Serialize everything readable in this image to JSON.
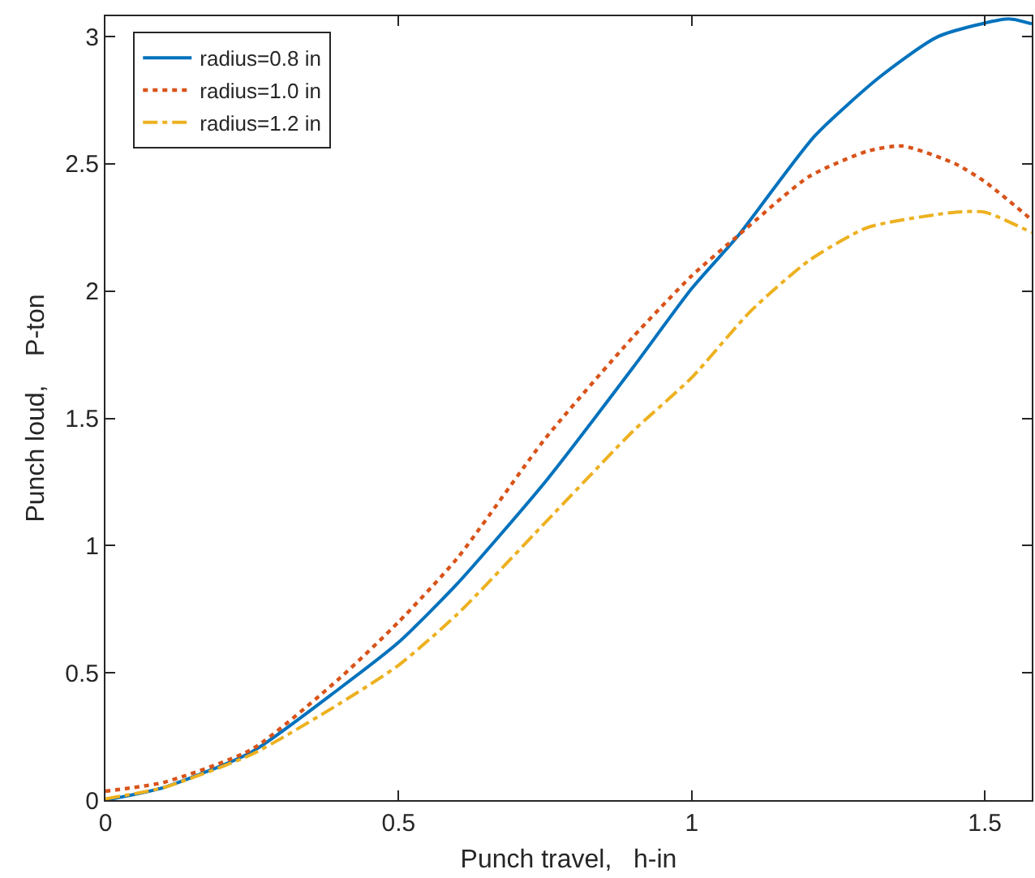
{
  "chart_data": {
    "type": "line",
    "xlabel": "Punch travel,   h-in",
    "ylabel": "Punch loud,    P-ton",
    "xlim": [
      0,
      1.58
    ],
    "ylim": [
      0,
      3.08
    ],
    "xticks": [
      0,
      0.5,
      1,
      1.5
    ],
    "yticks": [
      0,
      0.5,
      1,
      1.5,
      2,
      2.5,
      3
    ],
    "grid": false,
    "legend": "top left",
    "marker": "none",
    "series": [
      {
        "name": "radius=0.8 in",
        "color": "#0072bd",
        "line_style": "solid",
        "x": [
          0,
          0.1,
          0.25,
          0.4,
          0.5,
          0.6,
          0.75,
          0.9,
          1.0,
          1.08,
          1.21,
          1.32,
          1.42,
          1.54,
          1.58
        ],
        "values": [
          0,
          0.05,
          0.19,
          0.44,
          0.62,
          0.85,
          1.25,
          1.7,
          2.01,
          2.22,
          2.61,
          2.84,
          3.0,
          3.07,
          3.05
        ]
      },
      {
        "name": "radius=1.0 in",
        "color": "#d95319",
        "line_style": "dotted",
        "x": [
          0,
          0.1,
          0.25,
          0.4,
          0.5,
          0.6,
          0.75,
          0.9,
          1.0,
          1.08,
          1.2,
          1.3,
          1.36,
          1.45,
          1.5,
          1.58
        ],
        "values": [
          0.035,
          0.07,
          0.2,
          0.48,
          0.7,
          0.95,
          1.42,
          1.82,
          2.06,
          2.22,
          2.45,
          2.55,
          2.57,
          2.5,
          2.43,
          2.28
        ]
      },
      {
        "name": "radius=1.2 in",
        "color": "#edb120",
        "line_style": "dashdot",
        "x": [
          0,
          0.1,
          0.25,
          0.4,
          0.5,
          0.6,
          0.75,
          0.9,
          1.0,
          1.1,
          1.2,
          1.3,
          1.45,
          1.5,
          1.58
        ],
        "values": [
          0.005,
          0.05,
          0.18,
          0.38,
          0.53,
          0.73,
          1.09,
          1.45,
          1.66,
          1.92,
          2.12,
          2.25,
          2.31,
          2.31,
          2.23
        ]
      }
    ]
  }
}
